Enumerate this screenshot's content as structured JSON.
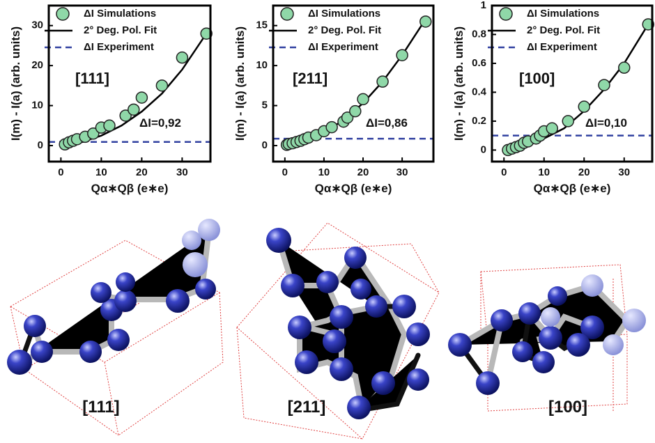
{
  "chart_data": [
    {
      "type": "scatter",
      "x_label": "Qα∗Qβ (e∗e)",
      "y_label": "I(m) - I(a) (arb. units)",
      "xlim": [
        -3,
        37
      ],
      "xticks": [
        0,
        10,
        20,
        30
      ],
      "ylim": [
        -4,
        35
      ],
      "yticks": [
        0,
        10,
        20,
        30
      ],
      "annotations": [
        "[111]",
        "ΔI=0,92"
      ],
      "series": [
        {
          "name": "ΔI Simulations",
          "color": "#8fd8a8",
          "x": [
            1,
            2,
            3,
            4,
            6,
            8,
            10,
            12,
            16,
            18,
            20,
            25,
            30,
            36
          ],
          "values": [
            0.3,
            0.8,
            1.2,
            1.6,
            2.2,
            3,
            4.5,
            5,
            7.5,
            9,
            12,
            15,
            22,
            28
          ]
        },
        {
          "name": "2° Deg. Pol. Fit",
          "color": "#000000",
          "x": [
            0,
            5,
            10,
            15,
            20,
            25,
            30,
            36
          ],
          "values": [
            0,
            0.8,
            2.5,
            5,
            8.5,
            13,
            19,
            28
          ]
        },
        {
          "name": "ΔI Experiment",
          "color": "#3040a0",
          "value": 0.92
        }
      ]
    },
    {
      "type": "scatter",
      "x_label": "Qα∗Qβ (e∗e)",
      "y_label": "I(m) - I(a) (arb. units)",
      "xlim": [
        -3,
        38
      ],
      "xticks": [
        0,
        10,
        20,
        30
      ],
      "ylim": [
        -2,
        17.5
      ],
      "yticks": [
        0,
        5,
        10,
        15
      ],
      "annotations": [
        "[211]",
        "ΔI=0,86"
      ],
      "series": [
        {
          "name": "ΔI Simulations",
          "color": "#8fd8a8",
          "x": [
            0.5,
            1,
            2,
            3,
            4,
            5,
            6,
            8,
            10,
            12,
            15,
            16,
            18,
            20,
            25,
            30,
            36
          ],
          "values": [
            0.1,
            0.2,
            0.3,
            0.45,
            0.6,
            0.8,
            1,
            1.3,
            1.8,
            2.3,
            3,
            3.5,
            4.3,
            5.8,
            8,
            11.3,
            15.5
          ]
        },
        {
          "name": "2° Deg. Pol. Fit",
          "color": "#000000",
          "x": [
            0,
            5,
            10,
            15,
            20,
            25,
            30,
            36
          ],
          "values": [
            0,
            0.5,
            1.6,
            3.2,
            5.3,
            8,
            11.3,
            15.8
          ]
        },
        {
          "name": "ΔI Experiment",
          "color": "#3040a0",
          "value": 0.86
        }
      ]
    },
    {
      "type": "scatter",
      "x_label": "Qα∗Qβ (e∗e)",
      "y_label": "I(m) - I(a) (arb. units)",
      "xlim": [
        -3,
        37
      ],
      "xticks": [
        0,
        10,
        20,
        30
      ],
      "ylim": [
        -0.08,
        1
      ],
      "yticks": [
        0,
        0.2,
        0.4,
        0.6,
        0.8,
        1
      ],
      "annotations": [
        "[100]",
        "ΔI=0,10"
      ],
      "series": [
        {
          "name": "ΔI Simulations",
          "color": "#8fd8a8",
          "x": [
            1,
            2,
            3,
            4,
            5,
            6,
            8,
            9,
            10,
            12,
            16,
            20,
            25,
            30,
            36
          ],
          "values": [
            0,
            0.01,
            0.02,
            0.03,
            0.05,
            0.06,
            0.08,
            0.1,
            0.13,
            0.15,
            0.2,
            0.3,
            0.45,
            0.57,
            0.87
          ]
        },
        {
          "name": "2° Deg. Pol. Fit",
          "color": "#000000",
          "x": [
            0,
            5,
            10,
            15,
            20,
            25,
            30,
            36
          ],
          "values": [
            0,
            0.03,
            0.08,
            0.15,
            0.27,
            0.42,
            0.6,
            0.87
          ]
        },
        {
          "name": "ΔI Experiment",
          "color": "#3040a0",
          "value": 0.1
        }
      ]
    }
  ],
  "structures": [
    {
      "label": "[111]"
    },
    {
      "label": "[211]"
    },
    {
      "label": "[100]"
    }
  ]
}
